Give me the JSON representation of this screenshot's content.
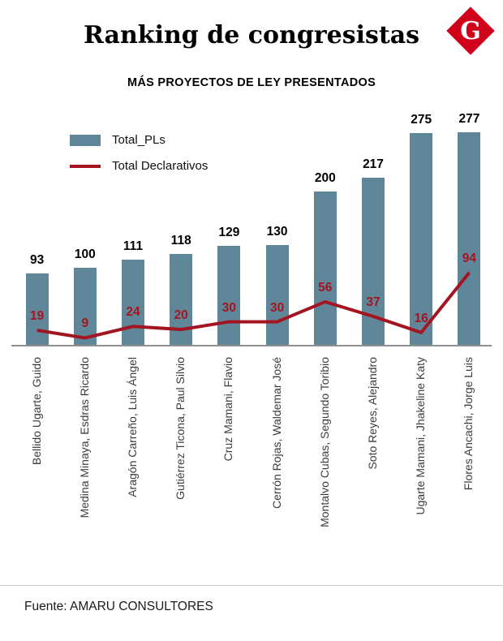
{
  "logo": {
    "letter": "G",
    "color": "#d0021b"
  },
  "header": {
    "title": "Ranking de congresistas",
    "subtitle": "MÁS PROYECTOS DE LEY PRESENTADOS"
  },
  "chart_data": {
    "type": "bar",
    "title": "Ranking de congresistas",
    "subtitle": "MÁS PROYECTOS DE LEY PRESENTADOS",
    "categories": [
      "Bellido Ugarte, Guido",
      "Medina Minaya, Esdras Ricardo",
      "Aragón Carreño, Luis Ángel",
      "Gutiérrez Ticona, Paul Silvio",
      "Cruz Mamani, Flavio",
      "Cerrón Rojas, Waldemar José",
      "Montalvo Cubas, Segundo Toribio",
      "Soto Reyes, Alejandro",
      "Ugarte Mamani, Jhakeline Katy",
      "Flores Ancachi, Jorge Luis"
    ],
    "series": [
      {
        "name": "Total_PLs",
        "type": "bar",
        "color": "#5f8699",
        "values": [
          93,
          100,
          111,
          118,
          129,
          130,
          200,
          217,
          275,
          277
        ]
      },
      {
        "name": "Total Declarativos",
        "type": "line",
        "color": "#a31621",
        "values": [
          19,
          9,
          24,
          20,
          30,
          30,
          56,
          37,
          16,
          94
        ]
      }
    ],
    "ylim": [
      0,
      285
    ],
    "grid": false,
    "legend_position": "top-left",
    "xlabel": "",
    "ylabel": ""
  },
  "source": {
    "label": "Fuente:",
    "value": "AMARU CONSULTORES"
  }
}
